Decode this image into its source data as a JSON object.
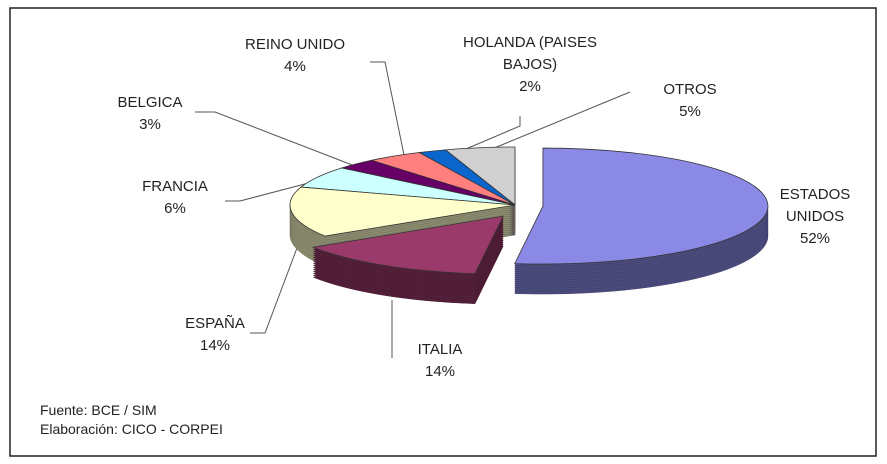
{
  "chart_data": {
    "type": "pie3d",
    "categories": [
      "ESTADOS UNIDOS",
      "ITALIA",
      "ESPAÑA",
      "FRANCIA",
      "BELGICA",
      "REINO UNIDO",
      "HOLANDA (PAISES BAJOS)",
      "OTROS"
    ],
    "values": [
      52,
      14,
      14,
      6,
      3,
      4,
      2,
      5
    ],
    "value_labels": [
      "52%",
      "14%",
      "14%",
      "6%",
      "3%",
      "4%",
      "2%",
      "5%"
    ],
    "colors": [
      "#8a8ae6",
      "#9a3a6a",
      "#ffffcc",
      "#ccffff",
      "#660066",
      "#ff7f7f",
      "#0a66cc",
      "#d0d0d0"
    ],
    "source": "Fuente: BCE  / SIM",
    "credit": "Elaboración: CICO - CORPEI"
  }
}
